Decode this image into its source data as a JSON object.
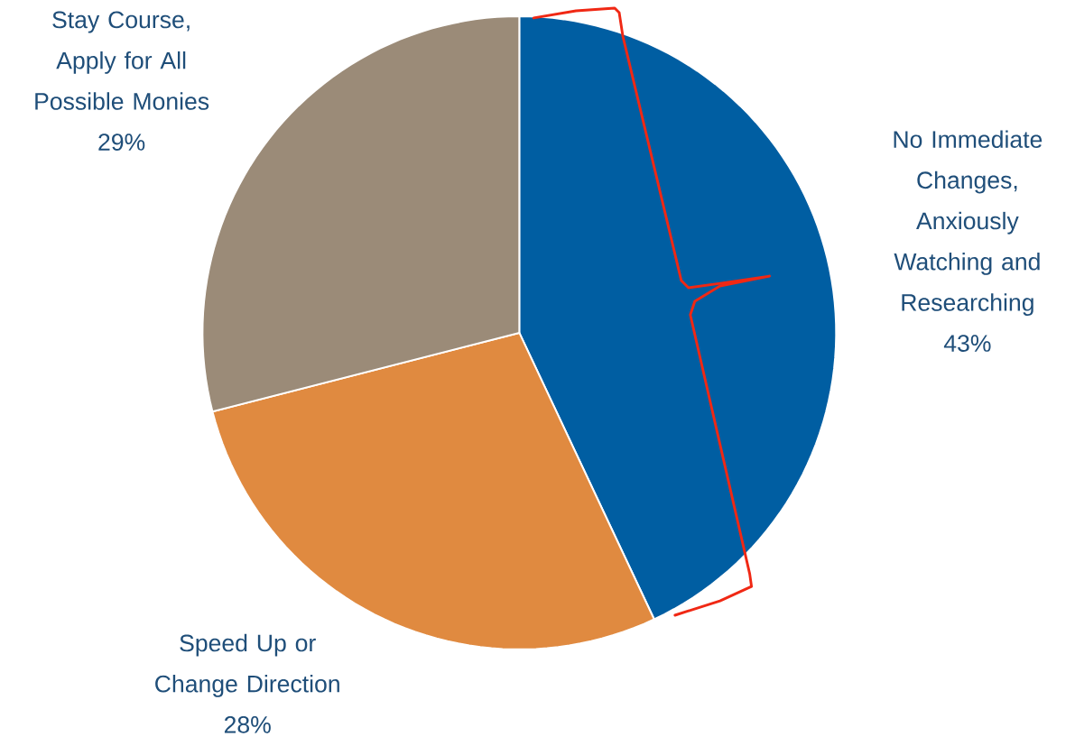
{
  "chart_data": {
    "type": "pie",
    "categories": [
      "No Immediate Changes, Anxiously Watching and Researching",
      "Speed Up or Change Direction",
      "Stay Course, Apply for All Possible Monies"
    ],
    "values": [
      43,
      28,
      29
    ],
    "colors": [
      "#005ea2",
      "#e08a40",
      "#9b8b78"
    ],
    "value_labels": [
      "43%",
      "28%",
      "29%"
    ]
  }
}
